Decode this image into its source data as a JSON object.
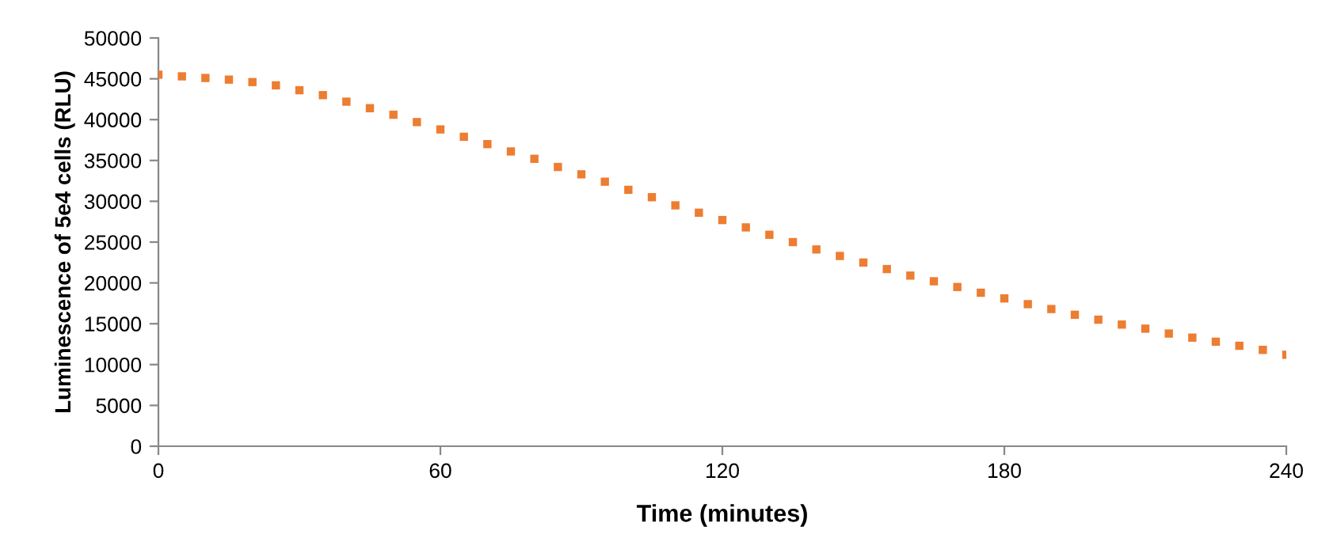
{
  "chart_data": {
    "type": "scatter",
    "xlabel": "Time (minutes)",
    "ylabel": "Luminescence of 5e4 cells (RLU)",
    "xlim": [
      0,
      240
    ],
    "xticks": [
      0,
      60,
      120,
      180,
      240
    ],
    "ylim": [
      0,
      50000
    ],
    "yticks": [
      0,
      5000,
      10000,
      15000,
      20000,
      25000,
      30000,
      35000,
      40000,
      45000,
      50000
    ],
    "grid": false,
    "legend": false,
    "marker": "square",
    "x": [
      0,
      5,
      10,
      15,
      20,
      25,
      30,
      35,
      40,
      45,
      50,
      55,
      60,
      65,
      70,
      75,
      80,
      85,
      90,
      95,
      100,
      105,
      110,
      115,
      120,
      125,
      130,
      135,
      140,
      145,
      150,
      155,
      160,
      165,
      170,
      175,
      180,
      185,
      190,
      195,
      200,
      205,
      210,
      215,
      220,
      225,
      230,
      235,
      240
    ],
    "series": [
      {
        "color": "#ed7d31",
        "values": [
          45500,
          45300,
          45100,
          44900,
          44600,
          44200,
          43600,
          43000,
          42200,
          41400,
          40600,
          39700,
          38800,
          37900,
          37000,
          36100,
          35200,
          34200,
          33300,
          32400,
          31400,
          30500,
          29500,
          28600,
          27700,
          26800,
          25900,
          25000,
          24100,
          23300,
          22500,
          21700,
          20900,
          20200,
          19500,
          18800,
          18100,
          17400,
          16800,
          16100,
          15500,
          14900,
          14400,
          13800,
          13300,
          12800,
          12300,
          11800,
          11200
        ]
      }
    ]
  }
}
